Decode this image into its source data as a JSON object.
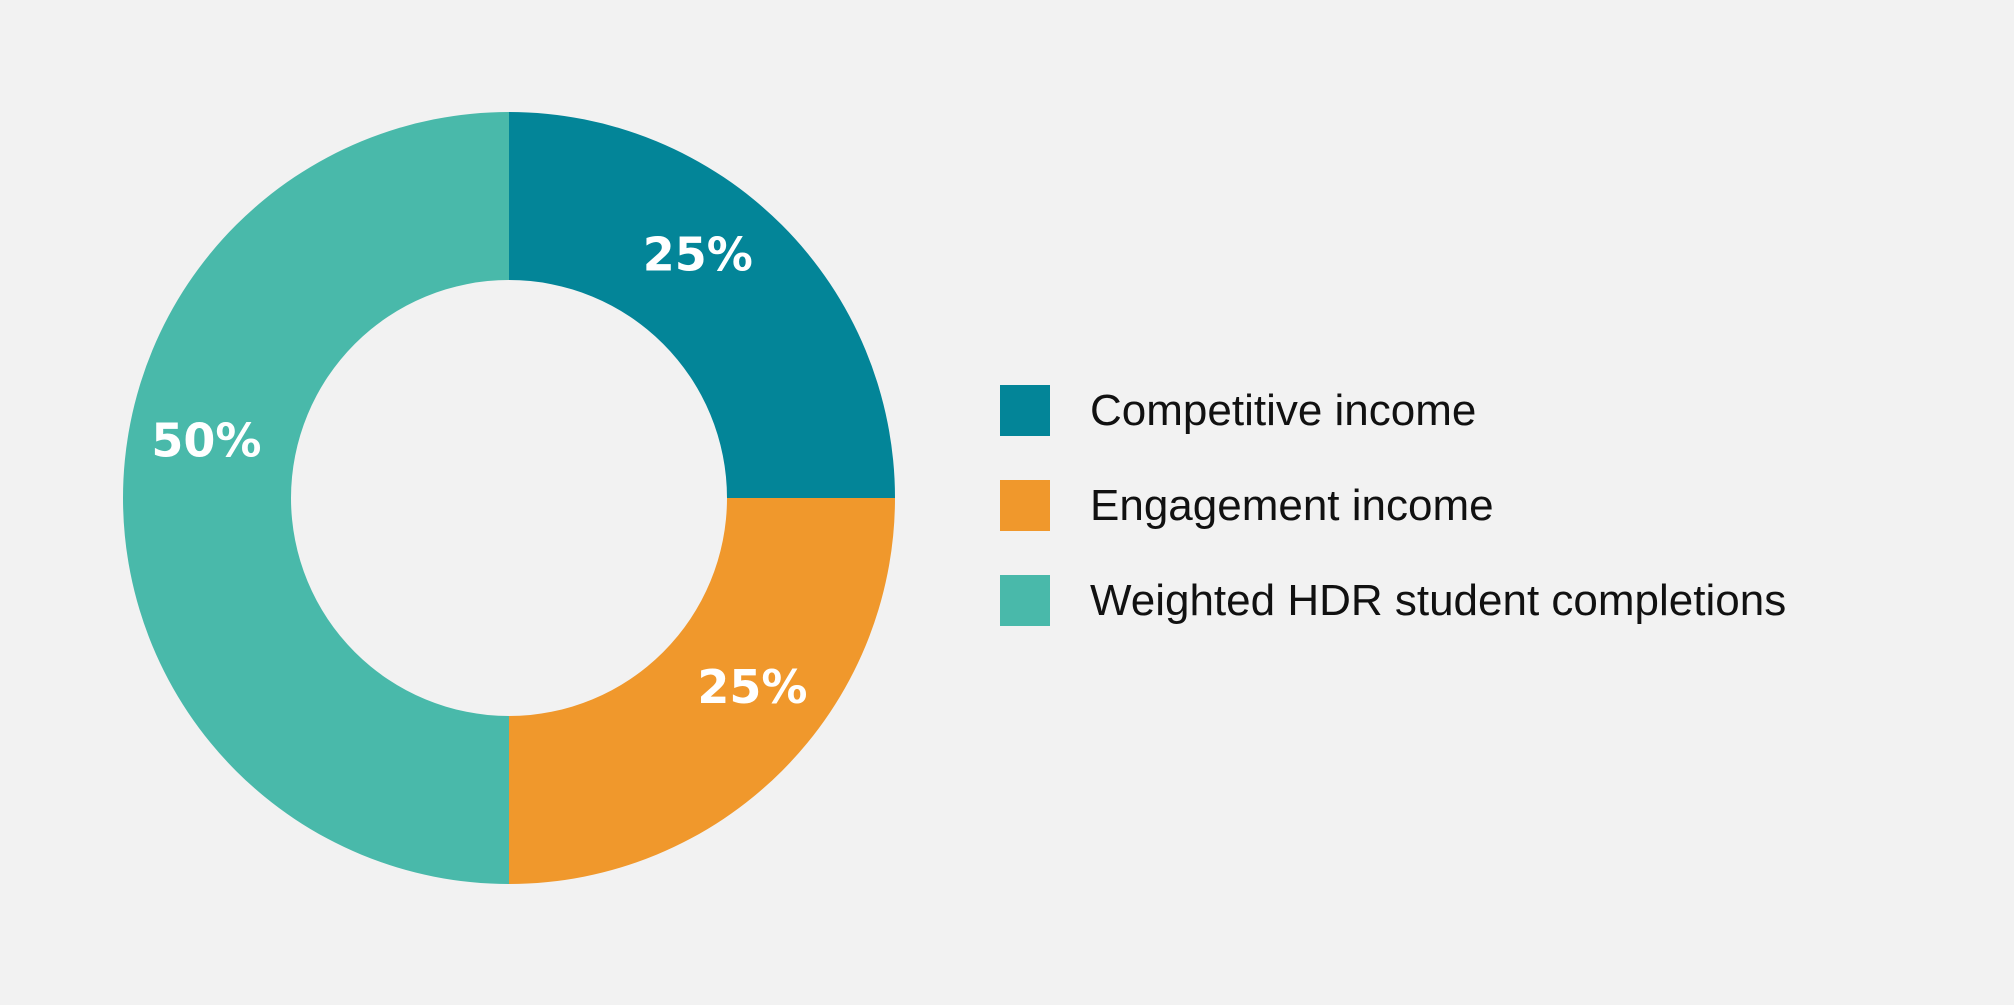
{
  "chart_data": {
    "type": "pie",
    "variant": "donut",
    "title": "",
    "categories": [
      "Competitive income",
      "Engagement income",
      "Weighted HDR student completions"
    ],
    "values": [
      25,
      25,
      50
    ],
    "value_labels": [
      "25%",
      "25%",
      "50%"
    ],
    "colors": [
      "#038598",
      "#f0982c",
      "#49b9aa"
    ],
    "legend": "right",
    "start_angle_deg": 0,
    "direction": "clockwise"
  },
  "legend": {
    "items": [
      {
        "label": "Competitive income",
        "color": "#038598"
      },
      {
        "label": "Engagement income",
        "color": "#f0982c"
      },
      {
        "label": "Weighted HDR student completions",
        "color": "#49b9aa"
      }
    ]
  }
}
